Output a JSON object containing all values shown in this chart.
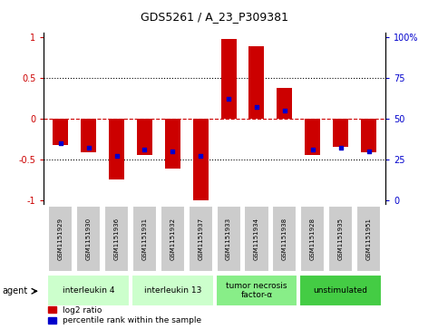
{
  "title": "GDS5261 / A_23_P309381",
  "samples": [
    "GSM1151929",
    "GSM1151930",
    "GSM1151936",
    "GSM1151931",
    "GSM1151932",
    "GSM1151937",
    "GSM1151933",
    "GSM1151934",
    "GSM1151938",
    "GSM1151928",
    "GSM1151935",
    "GSM1151951"
  ],
  "log2_ratio": [
    -0.33,
    -0.42,
    -0.75,
    -0.45,
    -0.62,
    -1.0,
    0.97,
    0.89,
    0.37,
    -0.45,
    -0.35,
    -0.42
  ],
  "percentile_rank": [
    0.35,
    0.32,
    0.27,
    0.31,
    0.3,
    0.27,
    0.62,
    0.57,
    0.55,
    0.31,
    0.32,
    0.3
  ],
  "groups": [
    {
      "label": "interleukin 4",
      "n_samples": 3,
      "color": "#ccffcc"
    },
    {
      "label": "interleukin 13",
      "n_samples": 3,
      "color": "#ccffcc"
    },
    {
      "label": "tumor necrosis\nfactor-α",
      "n_samples": 3,
      "color": "#88ee88"
    },
    {
      "label": "unstimulated",
      "n_samples": 3,
      "color": "#44cc44"
    }
  ],
  "bar_color": "#cc0000",
  "dot_color": "#0000cc",
  "ylim": [
    -1.05,
    1.05
  ],
  "yticks_left": [
    -1,
    -0.5,
    0,
    0.5,
    1
  ],
  "yticks_right_pos": [
    -1,
    -0.5,
    0,
    0.5,
    1
  ],
  "yticks_right_labels": [
    "0",
    "25",
    "50",
    "75",
    "100%"
  ],
  "hlines_dotted": [
    -0.5,
    0.5
  ],
  "hline_dashed": 0,
  "bar_width": 0.55,
  "sample_box_color": "#cccccc",
  "agent_label": "agent"
}
